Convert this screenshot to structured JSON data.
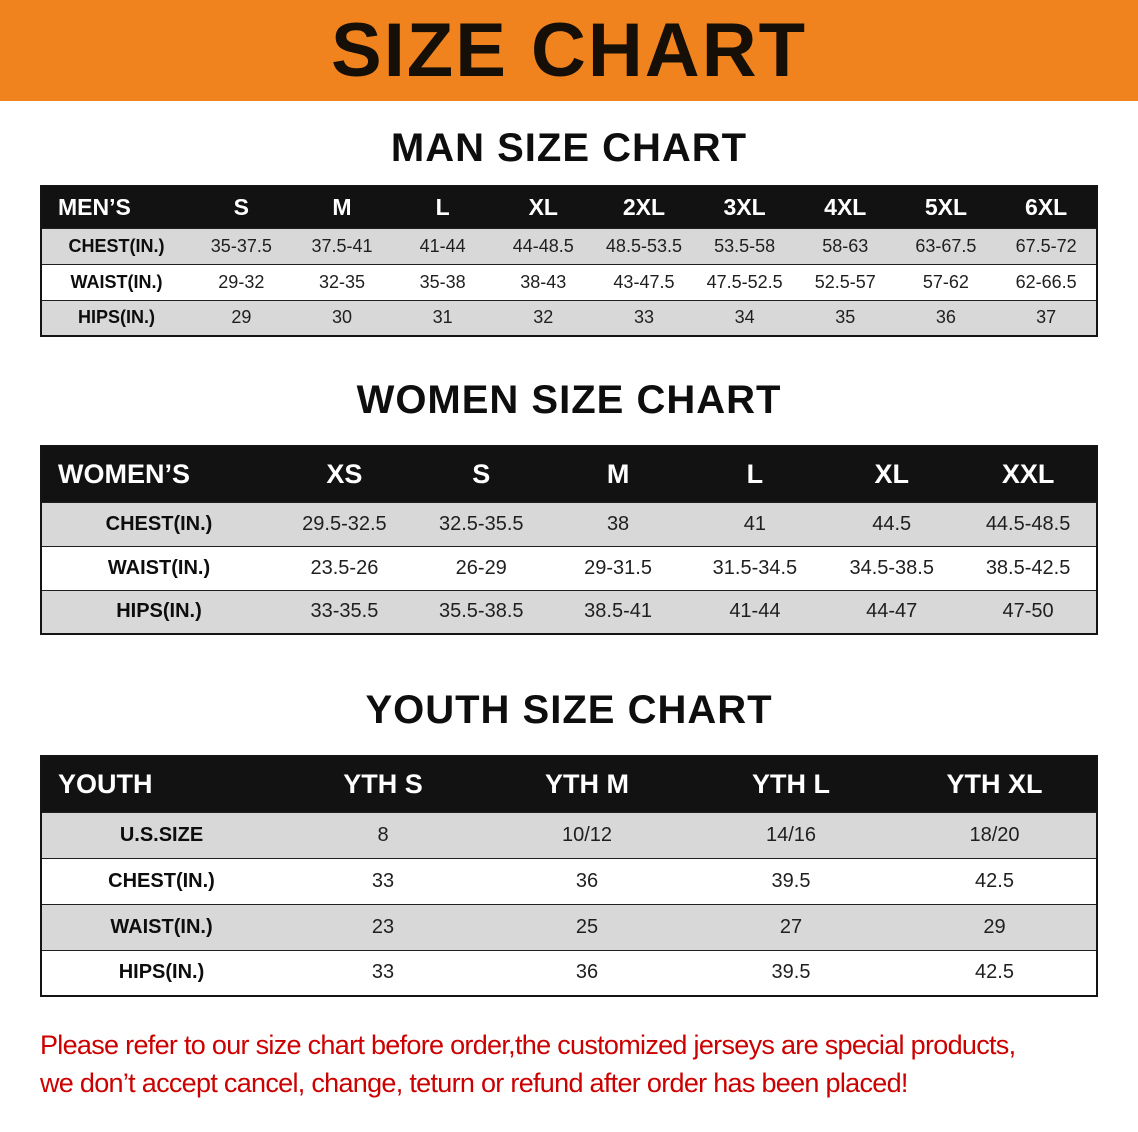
{
  "banner": {
    "title": "SIZE CHART",
    "bg_color": "#F0831D"
  },
  "sections": [
    {
      "id": "men",
      "heading": "MAN SIZE CHART",
      "table": {
        "header": [
          "MEN’S",
          "S",
          "M",
          "L",
          "XL",
          "2XL",
          "3XL",
          "4XL",
          "5XL",
          "6XL"
        ],
        "rows": [
          {
            "label": "CHEST(IN.)",
            "values": [
              "35-37.5",
              "37.5-41",
              "41-44",
              "44-48.5",
              "48.5-53.5",
              "53.5-58",
              "58-63",
              "63-67.5",
              "67.5-72"
            ]
          },
          {
            "label": "WAIST(IN.)",
            "values": [
              "29-32",
              "32-35",
              "35-38",
              "38-43",
              "43-47.5",
              "47.5-52.5",
              "52.5-57",
              "57-62",
              "62-66.5"
            ]
          },
          {
            "label": "HIPS(IN.)",
            "values": [
              "29",
              "30",
              "31",
              "32",
              "33",
              "34",
              "35",
              "36",
              "37"
            ]
          }
        ]
      }
    },
    {
      "id": "women",
      "heading": "WOMEN SIZE CHART",
      "table": {
        "header": [
          "WOMEN’S",
          "XS",
          "S",
          "M",
          "L",
          "XL",
          "XXL"
        ],
        "rows": [
          {
            "label": "CHEST(IN.)",
            "values": [
              "29.5-32.5",
              "32.5-35.5",
              "38",
              "41",
              "44.5",
              "44.5-48.5"
            ]
          },
          {
            "label": "WAIST(IN.)",
            "values": [
              "23.5-26",
              "26-29",
              "29-31.5",
              "31.5-34.5",
              "34.5-38.5",
              "38.5-42.5"
            ]
          },
          {
            "label": "HIPS(IN.)",
            "values": [
              "33-35.5",
              "35.5-38.5",
              "38.5-41",
              "41-44",
              "44-47",
              "47-50"
            ]
          }
        ]
      }
    },
    {
      "id": "youth",
      "heading": "YOUTH SIZE CHART",
      "table": {
        "header": [
          "YOUTH",
          "YTH S",
          "YTH M",
          "YTH L",
          "YTH XL"
        ],
        "rows": [
          {
            "label": "U.S.SIZE",
            "values": [
              "8",
              "10/12",
              "14/16",
              "18/20"
            ]
          },
          {
            "label": "CHEST(IN.)",
            "values": [
              "33",
              "36",
              "39.5",
              "42.5"
            ]
          },
          {
            "label": "WAIST(IN.)",
            "values": [
              "23",
              "25",
              "27",
              "29"
            ]
          },
          {
            "label": "HIPS(IN.)",
            "values": [
              "33",
              "36",
              "39.5",
              "42.5"
            ]
          }
        ]
      }
    }
  ],
  "footer": {
    "line1": "Please refer to our size chart before order,the customized jerseys are special products,",
    "line2": "we don’t accept cancel, change, teturn or refund after order has been placed!",
    "text_color": "#CC0000"
  },
  "colors": {
    "row_shade": "#D8D8D8",
    "header_bg": "#121212"
  }
}
